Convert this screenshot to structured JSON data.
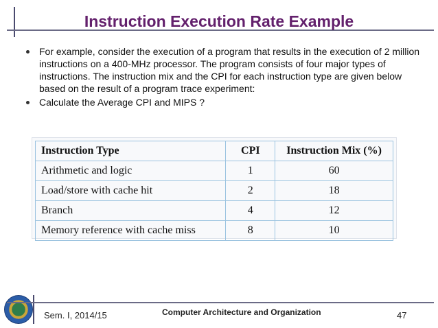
{
  "slide": {
    "title": "Instruction Execution Rate  Example",
    "bullets": [
      "For example, consider the execution of a program that results in the execution of 2 million instructions on a 400-MHz processor. The program consists of four major types of instructions. The instruction mix and the CPI for each instruction type are given below based on the result of a program trace experiment:",
      "Calculate the Average CPI  and MIPS ?"
    ]
  },
  "table": {
    "headers": [
      "Instruction Type",
      "CPI",
      "Instruction Mix (%)"
    ],
    "rows": [
      [
        "Arithmetic and logic",
        "1",
        "60"
      ],
      [
        "Load/store with cache hit",
        "2",
        "18"
      ],
      [
        "Branch",
        "4",
        "12"
      ],
      [
        "Memory reference with cache miss",
        "8",
        "10"
      ]
    ]
  },
  "footer": {
    "semester": "Sem. I, 2014/15",
    "course": "Computer Architecture and Organization",
    "page": "47"
  }
}
